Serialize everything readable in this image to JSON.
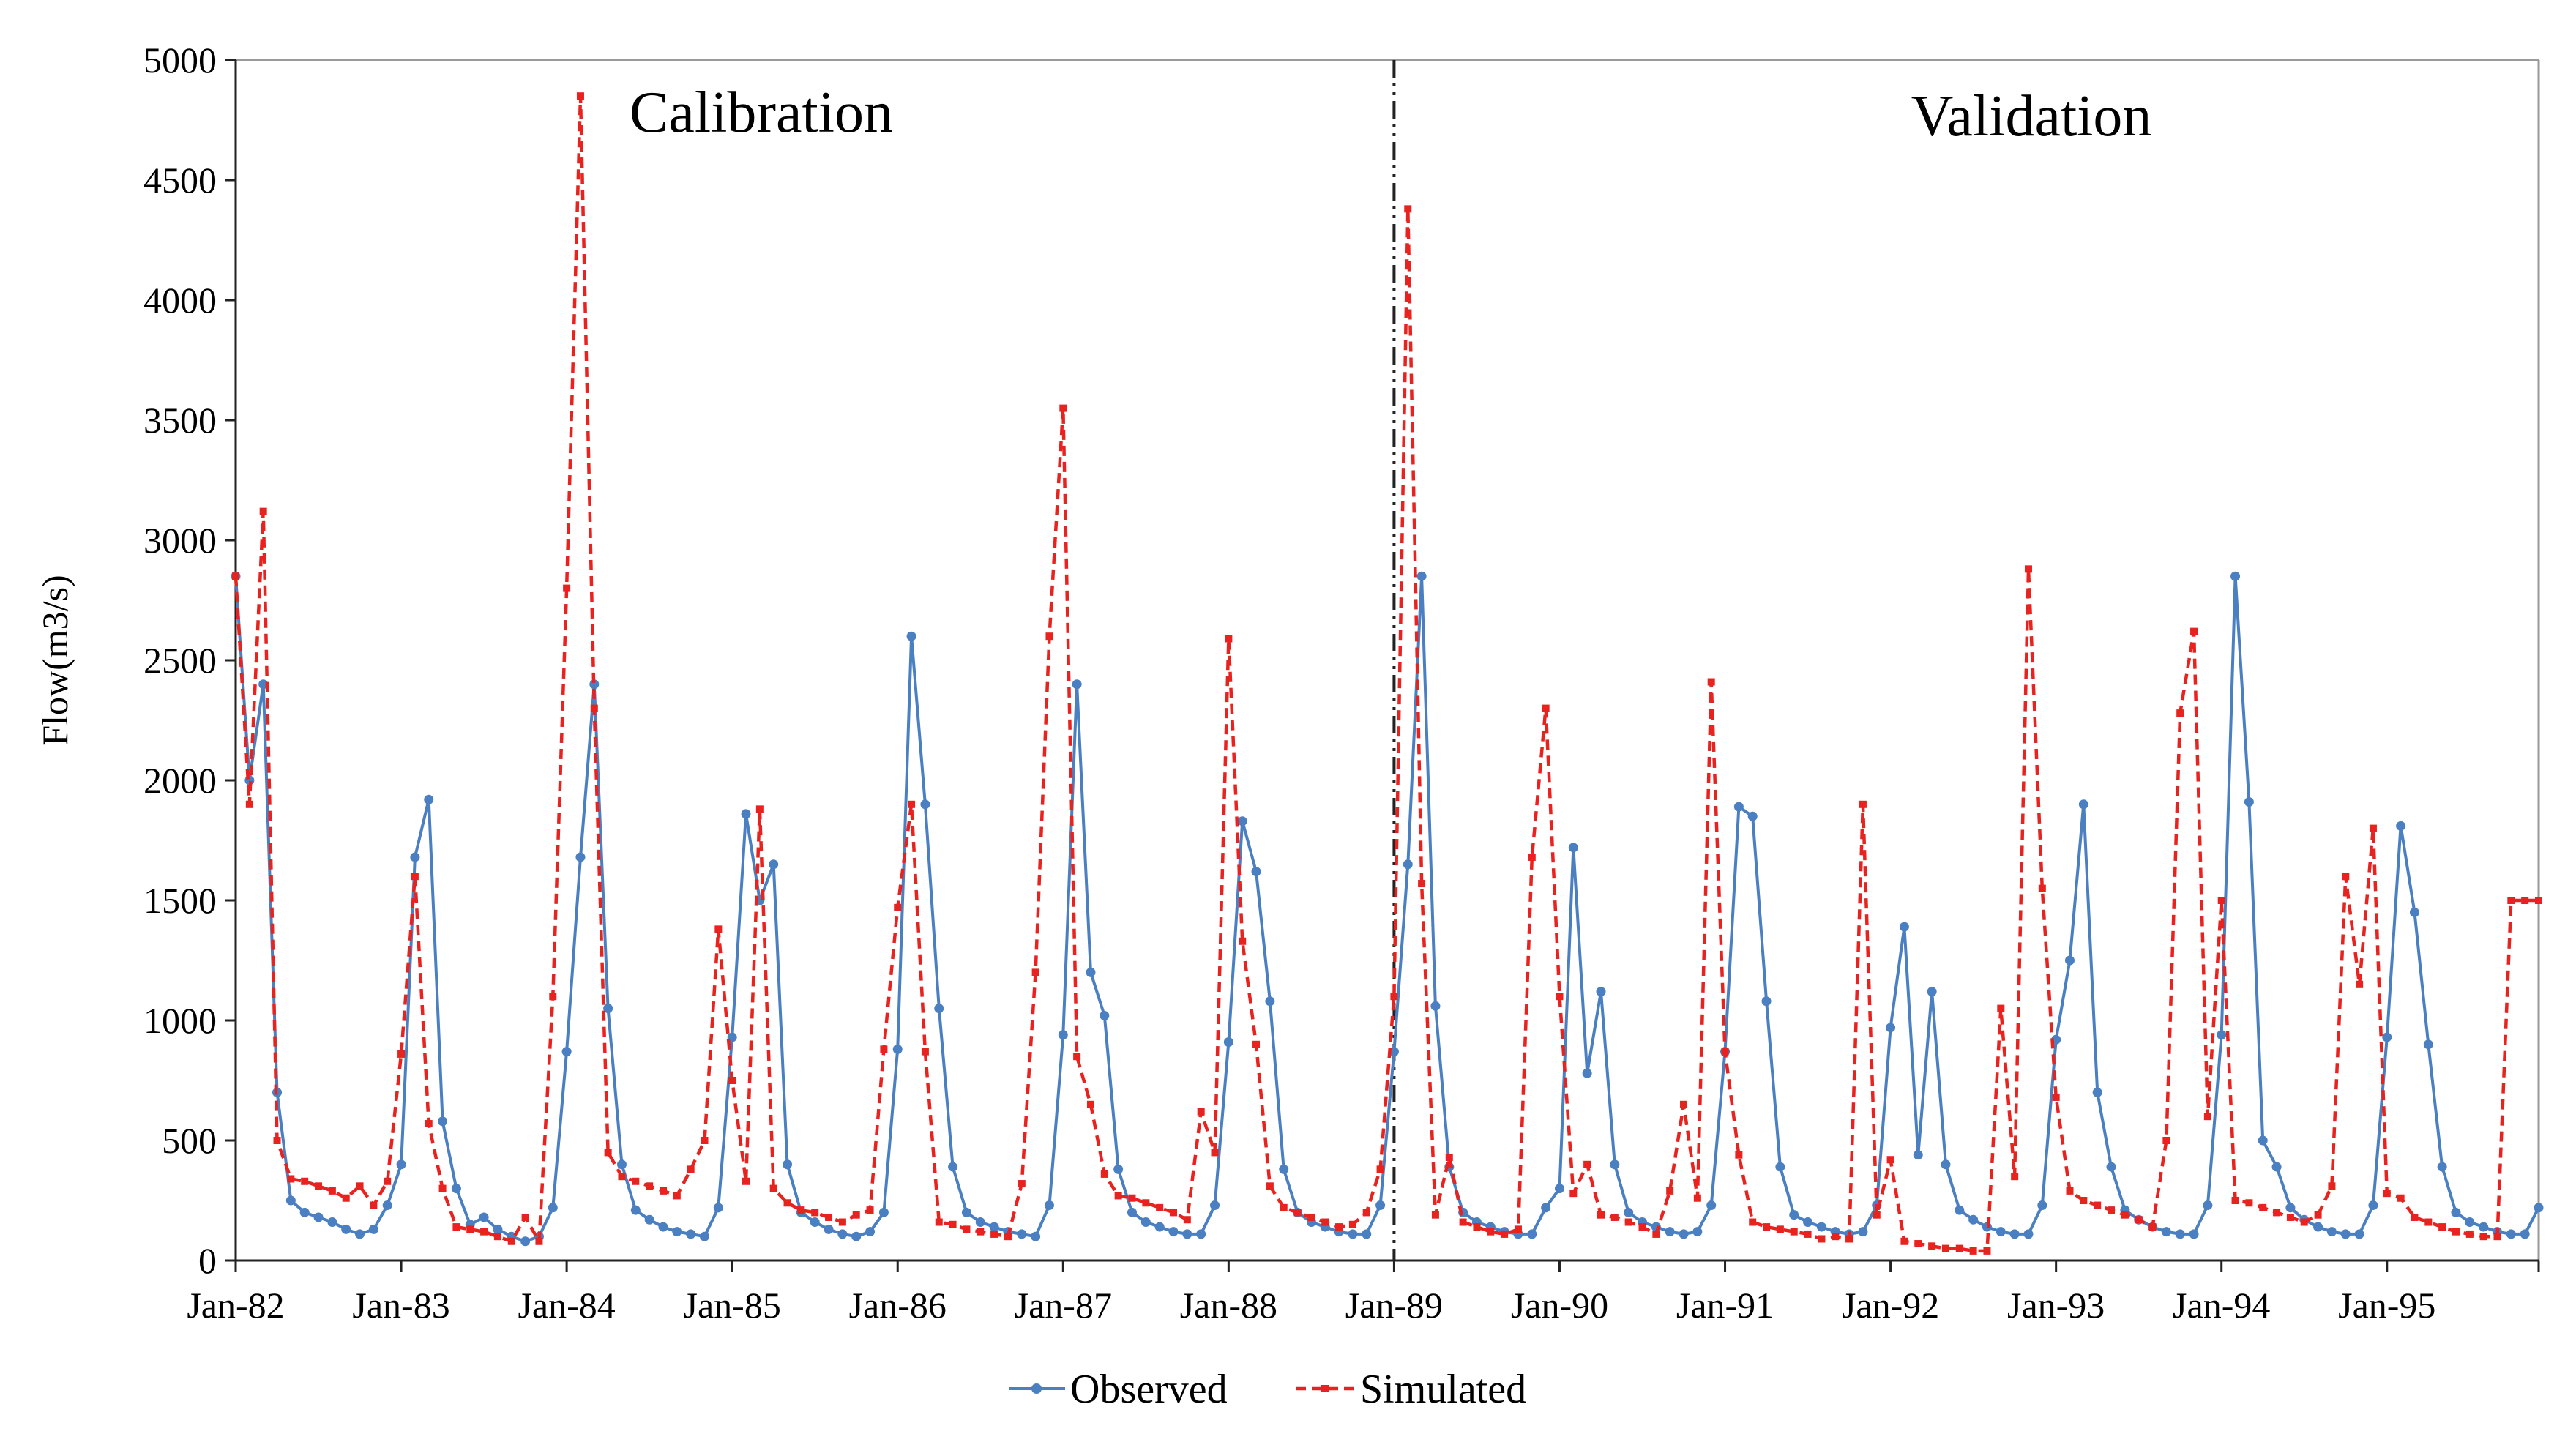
{
  "chart_data": {
    "type": "line",
    "title": "",
    "xlabel": "",
    "ylabel": "Flow(m3/s)",
    "ylim": [
      0,
      5000
    ],
    "yticks": [
      0,
      500,
      1000,
      1500,
      2000,
      2500,
      3000,
      3500,
      4000,
      4500,
      5000
    ],
    "x_start": "Jan-82",
    "x_end": "Dec-95",
    "x_tick_labels": [
      "Jan-82",
      "Jan-83",
      "Jan-84",
      "Jan-85",
      "Jan-86",
      "Jan-87",
      "Jan-88",
      "Jan-89",
      "Jan-90",
      "Jan-91",
      "Jan-92",
      "Jan-93",
      "Jan-94",
      "Jan-95"
    ],
    "divider_month_index": 84,
    "regions": [
      {
        "label": "Calibration",
        "side": "left"
      },
      {
        "label": "Validation",
        "side": "right"
      }
    ],
    "legend_position": "bottom-center",
    "series": [
      {
        "name": "Observed",
        "color": "#4a7fc1",
        "style": "solid-with-markers",
        "values": [
          2850,
          2000,
          2400,
          700,
          250,
          200,
          180,
          160,
          130,
          110,
          130,
          230,
          400,
          1680,
          1920,
          580,
          300,
          150,
          180,
          130,
          100,
          80,
          100,
          220,
          870,
          1680,
          2400,
          1050,
          400,
          210,
          170,
          140,
          120,
          110,
          100,
          220,
          930,
          1860,
          1500,
          1650,
          400,
          200,
          160,
          130,
          110,
          100,
          120,
          200,
          880,
          2600,
          1900,
          1050,
          390,
          200,
          160,
          140,
          120,
          110,
          100,
          230,
          940,
          2400,
          1200,
          1020,
          380,
          200,
          160,
          140,
          120,
          110,
          110,
          230,
          910,
          1830,
          1620,
          1080,
          380,
          200,
          160,
          140,
          120,
          110,
          110,
          230,
          870,
          1650,
          2850,
          1060,
          390,
          200,
          160,
          140,
          120,
          110,
          110,
          220,
          300,
          1720,
          780,
          1120,
          400,
          200,
          160,
          140,
          120,
          110,
          120,
          230,
          870,
          1890,
          1850,
          1080,
          390,
          190,
          160,
          140,
          120,
          110,
          120,
          230,
          970,
          1390,
          440,
          1120,
          400,
          210,
          170,
          140,
          120,
          110,
          110,
          230,
          920,
          1250,
          1900,
          700,
          390,
          210,
          170,
          140,
          120,
          110,
          110,
          230,
          940,
          2850,
          1910,
          500,
          390,
          220,
          170,
          140,
          120,
          110,
          110,
          230,
          930,
          1810,
          1450,
          900,
          390,
          200,
          160,
          140,
          120,
          110,
          110,
          220
        ]
      },
      {
        "name": "Simulated",
        "color": "#e8221e",
        "style": "dashed-with-markers",
        "values": [
          2850,
          1900,
          3120,
          500,
          340,
          330,
          310,
          290,
          260,
          310,
          230,
          330,
          860,
          1600,
          570,
          300,
          140,
          130,
          120,
          100,
          80,
          180,
          80,
          1100,
          2800,
          4850,
          2300,
          450,
          350,
          330,
          310,
          290,
          270,
          380,
          500,
          1380,
          750,
          330,
          1880,
          300,
          240,
          210,
          200,
          180,
          160,
          190,
          210,
          880,
          1470,
          1900,
          870,
          160,
          150,
          130,
          120,
          110,
          100,
          320,
          1200,
          2600,
          3550,
          850,
          650,
          360,
          270,
          260,
          240,
          220,
          200,
          170,
          620,
          450,
          2590,
          1330,
          900,
          310,
          220,
          200,
          180,
          160,
          140,
          150,
          200,
          380,
          1100,
          4380,
          1570,
          190,
          430,
          160,
          140,
          120,
          110,
          130,
          1680,
          2300,
          1100,
          280,
          400,
          190,
          180,
          160,
          140,
          110,
          290,
          650,
          260,
          2410,
          870,
          440,
          160,
          140,
          130,
          120,
          110,
          90,
          100,
          90,
          1900,
          190,
          420,
          80,
          70,
          60,
          50,
          50,
          40,
          40,
          1050,
          350,
          2880,
          1550,
          680,
          290,
          250,
          230,
          210,
          190,
          170,
          140,
          500,
          2280,
          2620,
          600,
          1500,
          250,
          240,
          220,
          200,
          180,
          160,
          190,
          310,
          1600,
          1150,
          1800,
          280,
          260,
          180,
          160,
          140,
          120,
          110,
          100,
          100,
          1500,
          1500,
          1500
        ]
      }
    ]
  }
}
